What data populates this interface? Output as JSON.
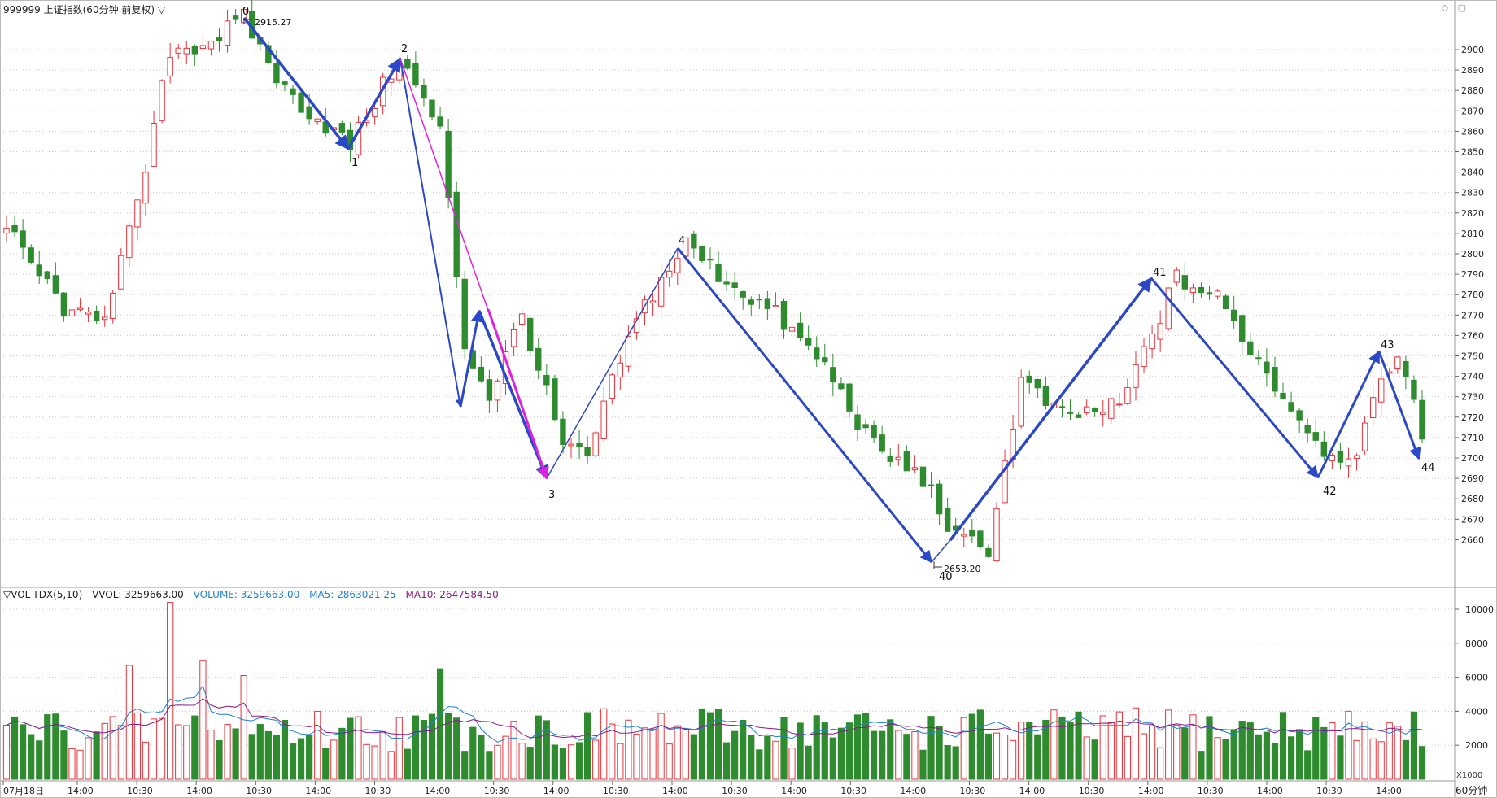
{
  "header": {
    "title": "999999 上证指数(60分钟 前复权)",
    "dropdown_icon": "▽"
  },
  "price_axis": {
    "ticks": [
      "2900",
      "2890",
      "2880",
      "2870",
      "2860",
      "2850",
      "2840",
      "2830",
      "2820",
      "2810",
      "2800",
      "2790",
      "2780",
      "2770",
      "2760",
      "2750",
      "2740",
      "2730",
      "2720",
      "2710",
      "2700",
      "2690",
      "2680",
      "2670",
      "2660"
    ]
  },
  "annotations": {
    "high_label": "2915.27",
    "low_label": "2653.20",
    "wave_labels": [
      "0",
      "1",
      "2",
      "3",
      "4",
      "40",
      "41",
      "42",
      "43",
      "44"
    ]
  },
  "volume": {
    "indicator": "▽VOL-TDX(5,10)",
    "vvol": "VVOL: 3259663.00",
    "volume": "VOLUME: 3259663.00",
    "ma5": "MA5: 2863021.25",
    "ma10": "MA10: 2647584.50",
    "ticks": [
      "10000",
      "8000",
      "6000",
      "4000",
      "2000"
    ],
    "unit": "X1000"
  },
  "time_axis": {
    "labels": [
      "07月18日",
      "14:00",
      "10:30",
      "14:00",
      "10:30",
      "14:00",
      "10:30",
      "14:00",
      "10:30",
      "14:00",
      "10:30",
      "14:00",
      "10:30",
      "14:00",
      "10:30",
      "14:00",
      "10:30",
      "14:00",
      "10:30",
      "14:00",
      "10:30",
      "14:00",
      "10:30",
      "14:00"
    ]
  },
  "period": "60分钟",
  "colors": {
    "up": "#e8333a",
    "down": "#2e8b2e",
    "wave": "#2b48c8",
    "magenta": "#e020e0",
    "ma5": "#1e7fd0",
    "ma10": "#8a1a8a",
    "grid": "#c8c8c8"
  }
}
